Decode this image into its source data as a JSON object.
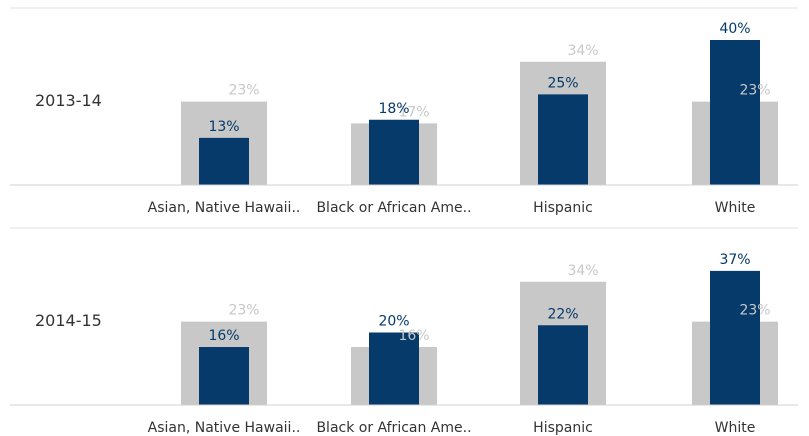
{
  "chart_data": [
    {
      "type": "bar",
      "title": "2013-14",
      "categories": [
        "Asian, Native Hawaii..",
        "Black or African Ame..",
        "Hispanic",
        "White"
      ],
      "series": [
        {
          "color": "#c8c8c8",
          "values": [
            23,
            17,
            34,
            23
          ],
          "value_labels": [
            "23%",
            "17%",
            "34%",
            "23%"
          ]
        },
        {
          "color": "#053a6b",
          "values": [
            13,
            18,
            25,
            40
          ],
          "value_labels": [
            "13%",
            "18%",
            "25%",
            "40%"
          ]
        }
      ],
      "ylim": [
        0,
        40
      ]
    },
    {
      "type": "bar",
      "title": "2014-15",
      "categories": [
        "Asian, Native Hawaii..",
        "Black or African Ame..",
        "Hispanic",
        "White"
      ],
      "series": [
        {
          "color": "#c8c8c8",
          "values": [
            23,
            16,
            34,
            23
          ],
          "value_labels": [
            "23%",
            "16%",
            "34%",
            "23%"
          ]
        },
        {
          "color": "#053a6b",
          "values": [
            16,
            20,
            22,
            37
          ],
          "value_labels": [
            "16%",
            "20%",
            "22%",
            "37%"
          ]
        }
      ],
      "ylim": [
        0,
        40
      ]
    }
  ]
}
